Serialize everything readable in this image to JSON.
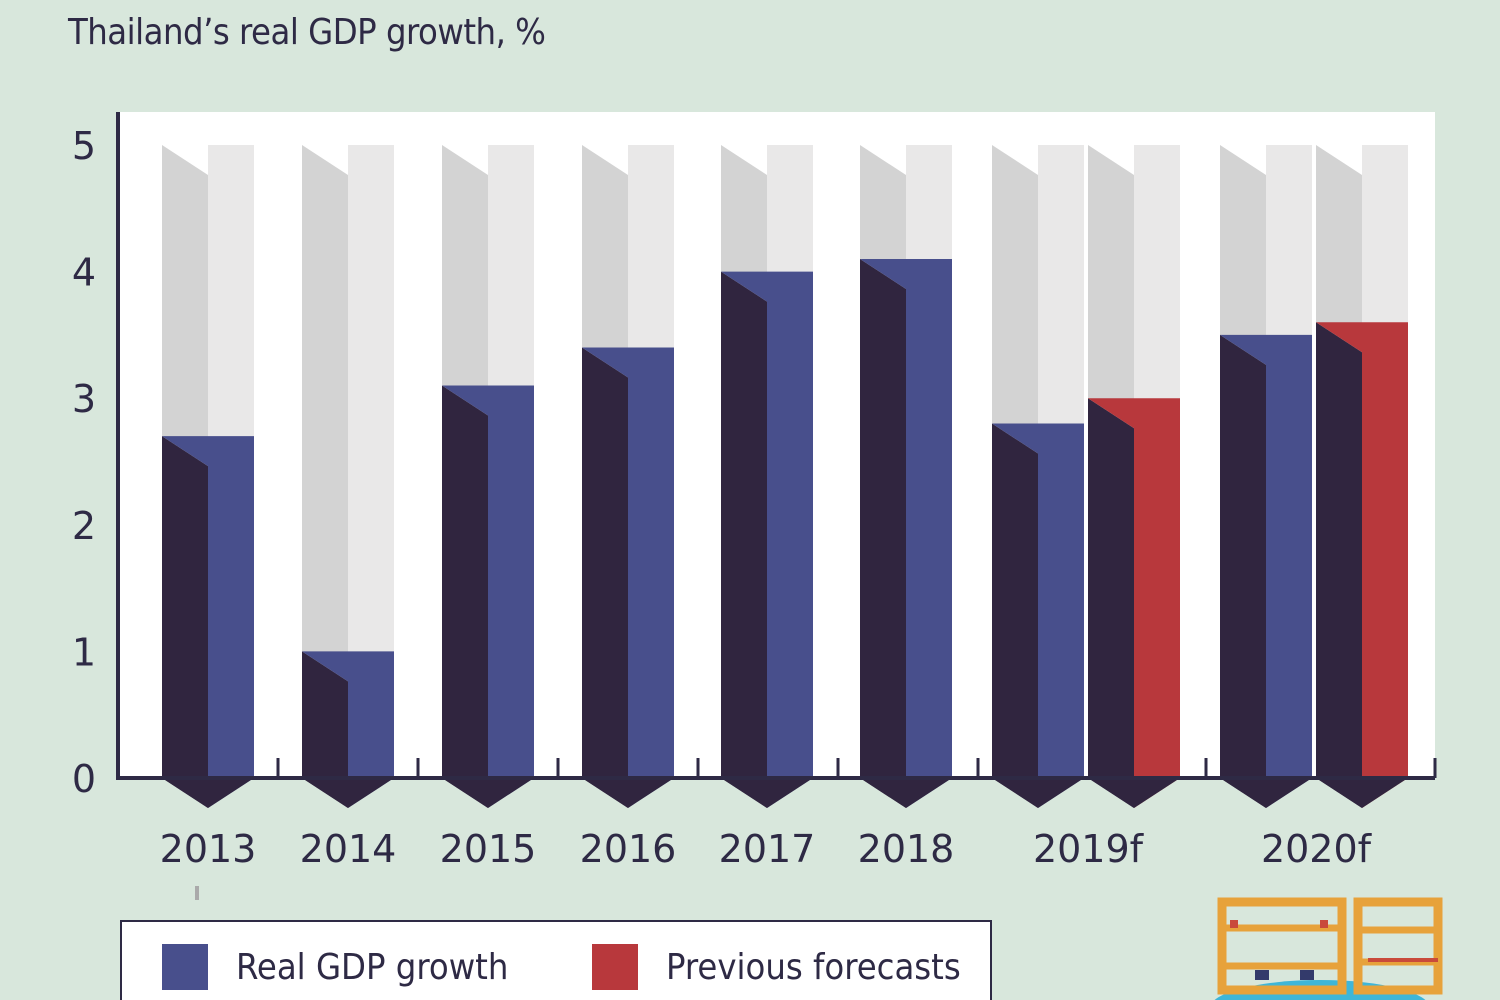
{
  "chart_data": {
    "type": "bar",
    "title": "Thailand’s real GDP growth, %",
    "xlabel": "",
    "ylabel": "",
    "ylim": [
      0,
      5
    ],
    "yticks": [
      "0",
      "1",
      "2",
      "3",
      "4",
      "5"
    ],
    "categories": [
      "2013",
      "2014",
      "2015",
      "2016",
      "2017",
      "2018",
      "2019f",
      "2020f"
    ],
    "series": [
      {
        "name": "Real GDP growth",
        "color": "#484f8c",
        "values": [
          2.7,
          1.0,
          3.1,
          3.4,
          4.0,
          4.1,
          2.8,
          3.5
        ]
      },
      {
        "name": "Previous forecasts",
        "color": "#b8383c",
        "values": [
          null,
          null,
          null,
          null,
          null,
          null,
          3.0,
          3.6
        ]
      }
    ],
    "grid": false,
    "legend": "bottom"
  },
  "colors": {
    "background": "#d8e7dc",
    "plot_area": "#ffffff",
    "bar_front": "#484f8c",
    "bar_shadow": "#30253f",
    "forecast_front": "#b8383c",
    "empty_light": "#e9e8e8",
    "empty_shadow": "#d3d3d3",
    "axis": "#2e2a45"
  },
  "decor": {
    "icon": "wooden-shelf-illustration"
  }
}
